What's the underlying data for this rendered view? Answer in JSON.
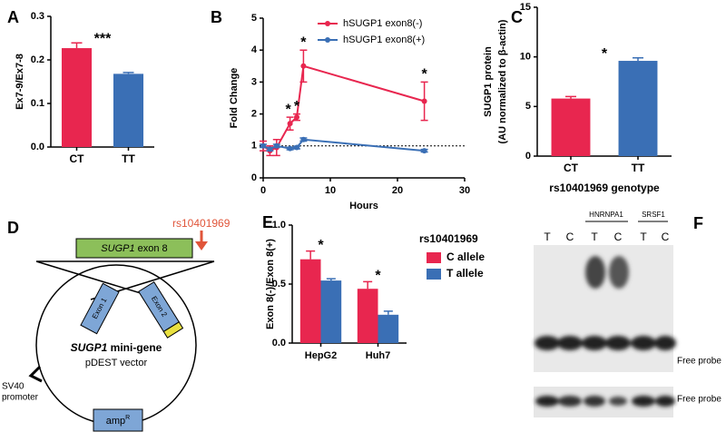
{
  "chart_data": [
    {
      "type": "bar",
      "panel": "A",
      "ylabel": "Ex7-9/Ex7-8",
      "categories": [
        "CT",
        "TT"
      ],
      "values": [
        0.227,
        0.168
      ],
      "errors": [
        0.012,
        0.003
      ],
      "colors": [
        "#e8264f",
        "#3a6fb5"
      ],
      "ylim": [
        0,
        0.3
      ],
      "yticks": [
        {
          "value": 0,
          "label": "0.0"
        },
        0.1,
        0.2,
        0.3
      ],
      "annotation": "***"
    },
    {
      "type": "line",
      "panel": "B",
      "xlabel": "Hours",
      "ylabel": "Fold Change",
      "legend": "upper right",
      "series": [
        {
          "name": "hSUGP1 exon8(-)",
          "color": "#e8264f",
          "x": [
            0,
            1,
            2,
            4,
            5,
            6,
            24
          ],
          "values": [
            1.0,
            0.85,
            0.95,
            1.7,
            1.9,
            3.5,
            2.4
          ],
          "errors": [
            0.15,
            0.15,
            0.25,
            0.2,
            0.1,
            0.5,
            0.6
          ]
        },
        {
          "name": "hSUGP1 exon8(+)",
          "color": "#3a6fb5",
          "x": [
            0,
            1,
            2,
            4,
            5,
            6,
            24
          ],
          "values": [
            1.0,
            0.9,
            1.0,
            0.92,
            0.95,
            1.2,
            0.85
          ],
          "errors": [
            0.05,
            0.05,
            0.05,
            0.04,
            0.04,
            0.05,
            0.04
          ]
        }
      ],
      "xlim": [
        0,
        30
      ],
      "xticks": [
        0,
        10,
        20,
        30
      ],
      "ylim": [
        0,
        5
      ],
      "yticks": [
        0,
        1,
        2,
        3,
        4,
        5
      ],
      "reference_line": 1,
      "annotations": [
        "*",
        "*",
        "*",
        "*"
      ]
    },
    {
      "type": "bar",
      "panel": "C",
      "ylabel": [
        "SUGP1 protein",
        "(AU normalized to β-actin)"
      ],
      "xlabel": "rs10401969 genotype",
      "categories": [
        "CT",
        "TT"
      ],
      "values": [
        5.8,
        9.6
      ],
      "errors": [
        0.2,
        0.3
      ],
      "colors": [
        "#e8264f",
        "#3a6fb5"
      ],
      "ylim": [
        0,
        15
      ],
      "yticks": [
        0,
        5,
        10,
        15
      ],
      "annotation": "*"
    },
    {
      "type": "grouped-bar",
      "panel": "E",
      "ylabel": "Exon 8(-)/Exon 8(+)",
      "legend_title": "rs10401969",
      "categories": [
        "HepG2",
        "Huh7"
      ],
      "series": [
        {
          "name": "C allele",
          "color": "#e8264f",
          "values": [
            0.71,
            0.46
          ],
          "errors": [
            0.07,
            0.06
          ]
        },
        {
          "name": "T allele",
          "color": "#3a6fb5",
          "values": [
            0.53,
            0.24
          ],
          "errors": [
            0.015,
            0.03
          ]
        }
      ],
      "ylim": [
        0,
        1
      ],
      "yticks": [
        {
          "value": 0,
          "label": "0.0"
        },
        0.5,
        {
          "value": 1,
          "label": "1.0"
        }
      ],
      "annotations": [
        "*",
        "*"
      ]
    }
  ],
  "diagram": {
    "panel": "D",
    "snp": "rs10401969",
    "exon8_gene": "SUGP1",
    "exon8_suffix": " exon 8",
    "exon1": "Exon 1",
    "exon2": "Exon 2",
    "promoter": [
      "SV40",
      "promoter"
    ],
    "minigene_gene": "SUGP1",
    "minigene_suffix": " mini-gene",
    "vector": "pDEST vector",
    "amp": "amp",
    "amp_sup": "R"
  },
  "blot": {
    "panel": "F",
    "lanes": [
      "T",
      "C",
      "T",
      "C",
      "T",
      "C"
    ],
    "groups": [
      "HNRNPA1",
      "SRSF1"
    ],
    "probe_labels": [
      "Free probe",
      "Free probe"
    ]
  }
}
